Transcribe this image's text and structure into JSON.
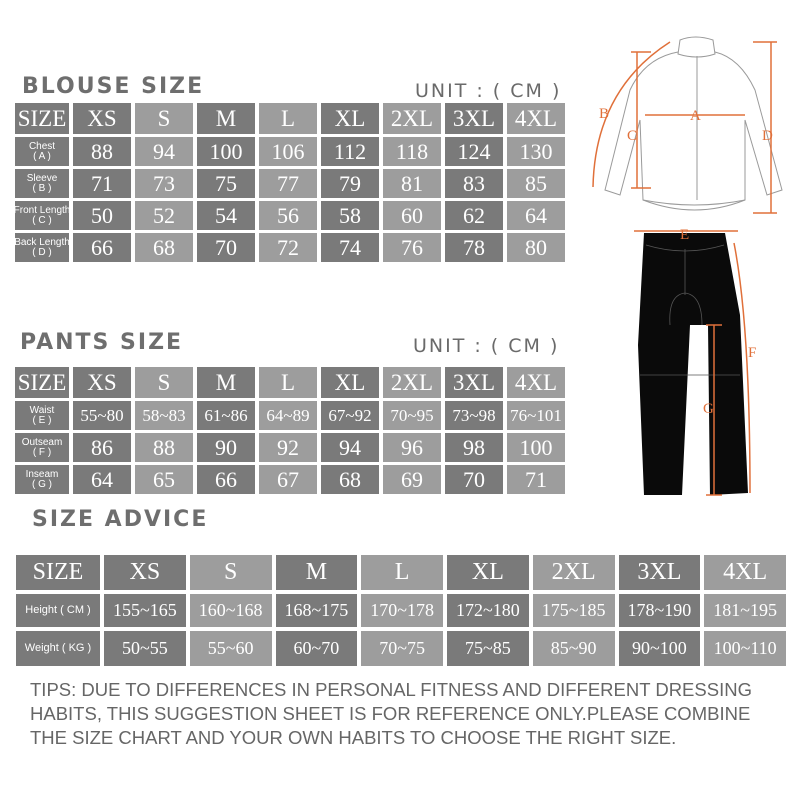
{
  "sizes": [
    "XS",
    "S",
    "M",
    "L",
    "XL",
    "2XL",
    "3XL",
    "4XL"
  ],
  "size_header": "SIZE",
  "blouse": {
    "title": "BLOUSE SIZE",
    "unit": "UNIT : ( CM )",
    "rows": [
      {
        "label": "Chest",
        "code": "( A )",
        "values": [
          "88",
          "94",
          "100",
          "106",
          "112",
          "118",
          "124",
          "130"
        ]
      },
      {
        "label": "Sleeve",
        "code": "( B )",
        "values": [
          "71",
          "73",
          "75",
          "77",
          "79",
          "81",
          "83",
          "85"
        ]
      },
      {
        "label": "Front Length",
        "code": "( C )",
        "values": [
          "50",
          "52",
          "54",
          "56",
          "58",
          "60",
          "62",
          "64"
        ]
      },
      {
        "label": "Back Length",
        "code": "( D )",
        "values": [
          "66",
          "68",
          "70",
          "72",
          "74",
          "76",
          "78",
          "80"
        ]
      }
    ]
  },
  "pants": {
    "title": "PANTS SIZE",
    "unit": "UNIT : ( CM )",
    "rows": [
      {
        "label": "Waist",
        "code": "( E )",
        "values": [
          "55~80",
          "58~83",
          "61~86",
          "64~89",
          "67~92",
          "70~95",
          "73~98",
          "76~101"
        ]
      },
      {
        "label": "Outseam",
        "code": "( F )",
        "values": [
          "86",
          "88",
          "90",
          "92",
          "94",
          "96",
          "98",
          "100"
        ]
      },
      {
        "label": "Inseam",
        "code": "( G )",
        "values": [
          "64",
          "65",
          "66",
          "67",
          "68",
          "69",
          "70",
          "71"
        ]
      }
    ]
  },
  "advice": {
    "title": "SIZE ADVICE",
    "rows": [
      {
        "label": "Height ( CM )",
        "values": [
          "155~165",
          "160~168",
          "168~175",
          "170~178",
          "172~180",
          "175~185",
          "178~190",
          "181~195"
        ]
      },
      {
        "label": "Weight ( KG )",
        "values": [
          "50~55",
          "55~60",
          "60~70",
          "70~75",
          "75~85",
          "85~90",
          "90~100",
          "100~110"
        ]
      }
    ]
  },
  "tips": "TIPS: DUE TO DIFFERENCES IN PERSONAL FITNESS AND DIFFERENT DRESSING HABITS, THIS SUGGESTION SHEET IS FOR REFERENCE ONLY.PLEASE COMBINE THE SIZE CHART AND YOUR OWN HABITS TO CHOOSE THE RIGHT SIZE.",
  "diagram": {
    "labels": {
      "A": "A",
      "B": "B",
      "C": "C",
      "D": "D",
      "E": "E",
      "F": "F",
      "G": "G"
    },
    "accent": "#e0703a"
  },
  "colors": {
    "dark_cell": "#7a7a7a",
    "light_cell": "#9d9d9d"
  }
}
